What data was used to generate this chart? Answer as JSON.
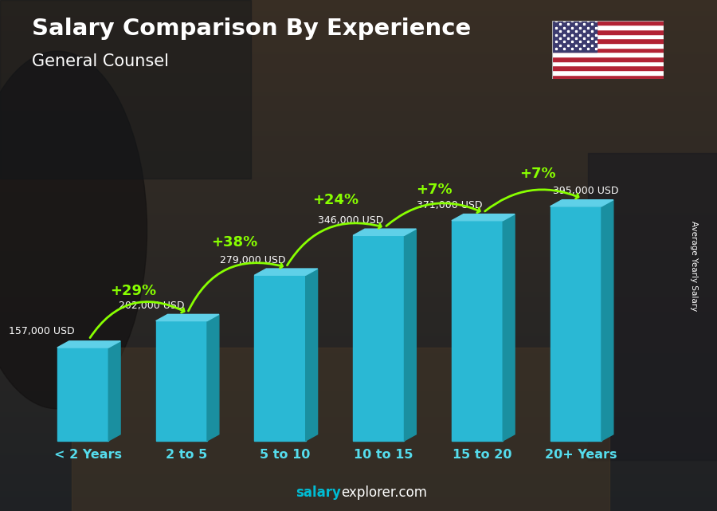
{
  "title": "Salary Comparison By Experience",
  "subtitle": "General Counsel",
  "categories": [
    "< 2 Years",
    "2 to 5",
    "5 to 10",
    "10 to 15",
    "15 to 20",
    "20+ Years"
  ],
  "values": [
    157000,
    202000,
    279000,
    346000,
    371000,
    395000
  ],
  "value_labels": [
    "157,000 USD",
    "202,000 USD",
    "279,000 USD",
    "346,000 USD",
    "371,000 USD",
    "395,000 USD"
  ],
  "pct_labels": [
    "+29%",
    "+38%",
    "+24%",
    "+7%",
    "+7%"
  ],
  "bar_face_color": "#2ab8d4",
  "bar_right_color": "#1a8fa0",
  "bar_top_color": "#5fd0e8",
  "bg_color": "#1a1a2e",
  "title_color": "#ffffff",
  "subtitle_color": "#ffffff",
  "value_label_color": "#ffffff",
  "pct_color": "#88ff00",
  "xlabel_color": "#55ddee",
  "ylabel_text": "Average Yearly Salary",
  "footer_salary_color": "#00bcd4",
  "footer_explorer_color": "#ffffff"
}
